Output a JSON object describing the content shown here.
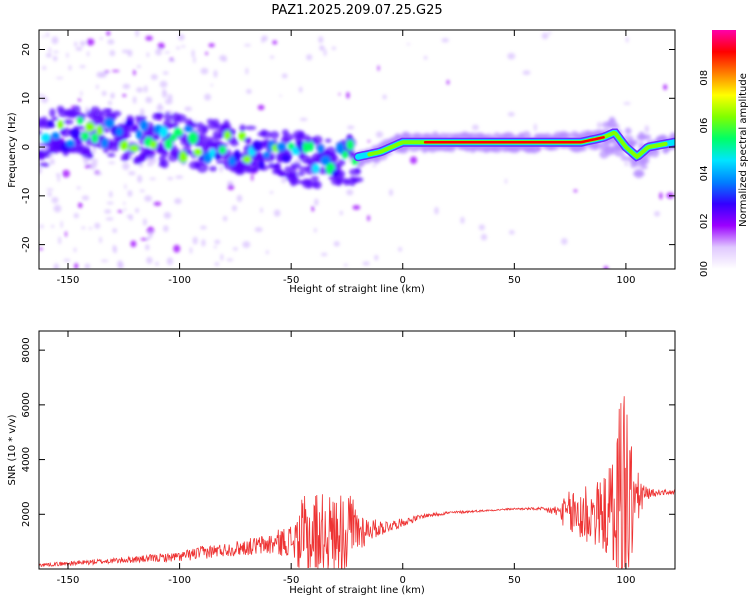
{
  "figure": {
    "title": "PAZ1.2025.209.07.25.G25"
  },
  "chart_data": [
    {
      "type": "heatmap",
      "xlabel": "Height of straight line (km)",
      "ylabel": "Frequency (Hz)",
      "xlim": [
        -163,
        122
      ],
      "ylim": [
        -25,
        24
      ],
      "x_ticks": [
        -150,
        -100,
        -50,
        0,
        50,
        100
      ],
      "y_ticks": [
        -20,
        -10,
        0,
        10,
        20
      ],
      "colorbar": {
        "label": "Normalized spectral amplitude",
        "range": [
          0,
          1
        ],
        "ticks": [
          0.0,
          0.2,
          0.4,
          0.6,
          0.8
        ],
        "colormap": [
          "#ffffff",
          "#e0c8ff",
          "#9b00ff",
          "#3300ff",
          "#0080ff",
          "#00e5ff",
          "#00ff66",
          "#80ff00",
          "#ffff00",
          "#ff8000",
          "#ff0000",
          "#ff00aa"
        ]
      },
      "ridge": {
        "x": [
          -160,
          -140,
          -120,
          -100,
          -80,
          -60,
          -50,
          -40,
          -30,
          -20,
          -10,
          0,
          10,
          50,
          80,
          90,
          95,
          100,
          105,
          110,
          122
        ],
        "y": [
          3,
          3,
          2,
          1,
          0,
          -1,
          -2,
          -3,
          -3,
          -2,
          -1,
          1,
          1,
          1,
          1,
          2,
          3,
          0,
          -2,
          0,
          1
        ]
      }
    },
    {
      "type": "line",
      "xlabel": "Height of straight line (km)",
      "ylabel": "SNR (10 * v/v)",
      "xlim": [
        -163,
        122
      ],
      "ylim": [
        0,
        8700
      ],
      "x_ticks": [
        -150,
        -100,
        -50,
        0,
        50,
        100
      ],
      "y_ticks": [
        2000,
        4000,
        6000,
        8000
      ],
      "color": "#ee3333",
      "envelope": {
        "x": [
          -163,
          -150,
          -140,
          -130,
          -120,
          -110,
          -100,
          -90,
          -80,
          -70,
          -60,
          -50,
          -45,
          -40,
          -35,
          -30,
          -25,
          -20,
          -15,
          -10,
          -5,
          0,
          10,
          20,
          30,
          40,
          50,
          60,
          65,
          70,
          75,
          80,
          85,
          90,
          95,
          97,
          99,
          101,
          103,
          105,
          110,
          115,
          122
        ],
        "base": [
          150,
          200,
          250,
          300,
          350,
          400,
          450,
          600,
          700,
          800,
          900,
          1050,
          1100,
          1200,
          1250,
          1300,
          1350,
          1400,
          1450,
          1500,
          1600,
          1700,
          1950,
          2050,
          2100,
          2150,
          2200,
          2200,
          2150,
          2100,
          2000,
          2000,
          2000,
          2000,
          2000,
          2100,
          2200,
          2300,
          2400,
          2600,
          2750,
          2800,
          2800
        ],
        "amp": [
          60,
          80,
          100,
          100,
          120,
          150,
          180,
          250,
          250,
          300,
          400,
          600,
          1500,
          1800,
          1500,
          1400,
          1800,
          900,
          400,
          300,
          200,
          150,
          80,
          60,
          40,
          30,
          30,
          50,
          120,
          250,
          900,
          1400,
          1200,
          1300,
          2500,
          4500,
          6000,
          3500,
          2200,
          1000,
          200,
          100,
          80
        ]
      }
    }
  ]
}
